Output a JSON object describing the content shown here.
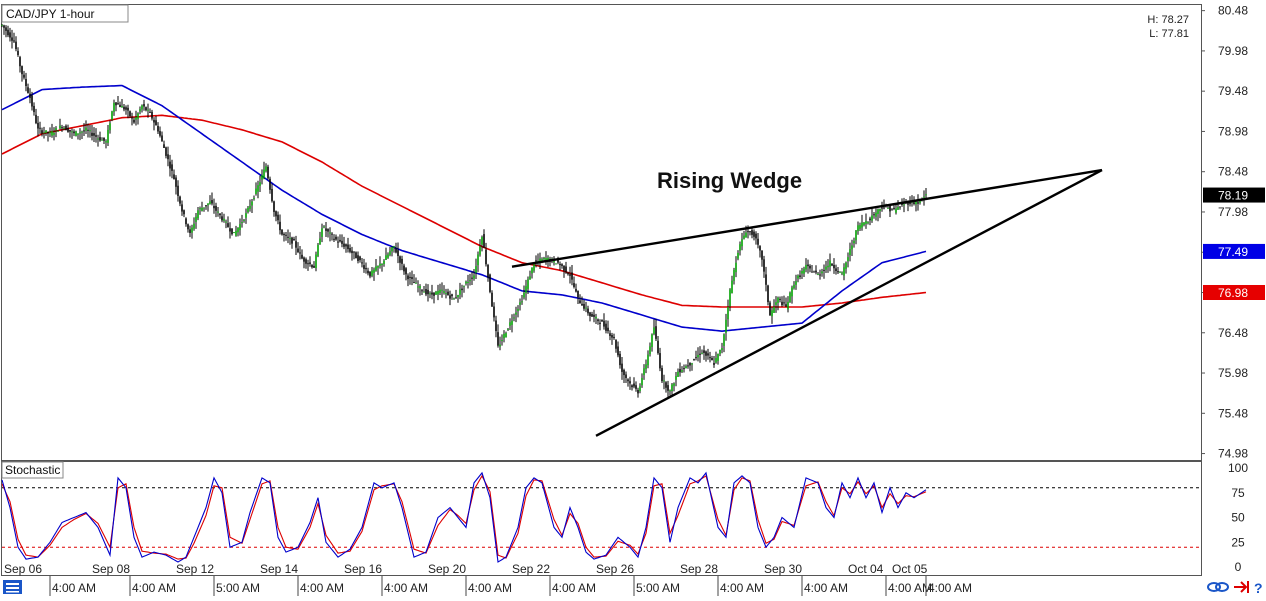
{
  "chart_data": {
    "type": "candlestick",
    "symbol_title": "CAD/JPY 1-hour",
    "hl_high": "H: 78.27",
    "hl_low": "L: 77.81",
    "annotation": "Rising Wedge",
    "price_axis": {
      "ylim": [
        74.9,
        80.55
      ],
      "ticks": [
        "80.48",
        "79.98",
        "79.48",
        "78.98",
        "78.48",
        "77.98",
        "77.48",
        "76.98",
        "76.48",
        "75.98",
        "75.48",
        "74.98"
      ]
    },
    "price_tags": [
      {
        "value": 78.19,
        "label": "78.19",
        "bg": "#000000",
        "fg": "#ffffff"
      },
      {
        "value": 77.49,
        "label": "77.49",
        "bg": "#0000e6",
        "fg": "#ffffff"
      },
      {
        "value": 76.98,
        "label": "76.98",
        "bg": "#e60000",
        "fg": "#ffffff"
      }
    ],
    "x_labels": [
      {
        "t": 0,
        "label": "Sep 06"
      },
      {
        "t": 24,
        "label": "4:00 AM"
      },
      {
        "t": 44,
        "label": "Sep 08"
      },
      {
        "t": 64,
        "label": "4:00 AM"
      },
      {
        "t": 86,
        "label": "Sep 12"
      },
      {
        "t": 106,
        "label": "5:00 AM"
      },
      {
        "t": 128,
        "label": "Sep 14"
      },
      {
        "t": 148,
        "label": "4:00 AM"
      },
      {
        "t": 170,
        "label": "Sep 16"
      },
      {
        "t": 190,
        "label": "4:00 AM"
      },
      {
        "t": 212,
        "label": "Sep 20"
      },
      {
        "t": 232,
        "label": "4:00 AM"
      },
      {
        "t": 254,
        "label": "Sep 22"
      },
      {
        "t": 274,
        "label": "4:00 AM"
      },
      {
        "t": 296,
        "label": "Sep 26"
      },
      {
        "t": 316,
        "label": "5:00 AM"
      },
      {
        "t": 338,
        "label": "Sep 28"
      },
      {
        "t": 358,
        "label": "4:00 AM"
      },
      {
        "t": 380,
        "label": "Sep 30"
      },
      {
        "t": 400,
        "label": "4:00 AM"
      },
      {
        "t": 422,
        "label": "Oct 04"
      },
      {
        "t": 442,
        "label": "4:00 AM"
      },
      {
        "t": 444,
        "label": "Oct 05"
      },
      {
        "t": 462,
        "label": "4:00 AM"
      }
    ],
    "price_path": [
      [
        0,
        80.3
      ],
      [
        6,
        80.1
      ],
      [
        10,
        79.7
      ],
      [
        14,
        79.4
      ],
      [
        18,
        79.0
      ],
      [
        24,
        78.95
      ],
      [
        30,
        79.05
      ],
      [
        36,
        78.95
      ],
      [
        42,
        79.0
      ],
      [
        48,
        78.9
      ],
      [
        52,
        78.85
      ],
      [
        56,
        79.35
      ],
      [
        62,
        79.25
      ],
      [
        66,
        79.1
      ],
      [
        70,
        79.3
      ],
      [
        74,
        79.2
      ],
      [
        78,
        79.0
      ],
      [
        82,
        78.7
      ],
      [
        86,
        78.4
      ],
      [
        90,
        78.0
      ],
      [
        94,
        77.7
      ],
      [
        98,
        78.0
      ],
      [
        104,
        78.1
      ],
      [
        110,
        77.9
      ],
      [
        116,
        77.7
      ],
      [
        122,
        77.95
      ],
      [
        128,
        78.3
      ],
      [
        132,
        78.55
      ],
      [
        136,
        78.0
      ],
      [
        140,
        77.7
      ],
      [
        146,
        77.6
      ],
      [
        150,
        77.4
      ],
      [
        156,
        77.3
      ],
      [
        160,
        77.8
      ],
      [
        166,
        77.65
      ],
      [
        172,
        77.55
      ],
      [
        178,
        77.4
      ],
      [
        184,
        77.2
      ],
      [
        190,
        77.35
      ],
      [
        196,
        77.55
      ],
      [
        202,
        77.2
      ],
      [
        208,
        77.05
      ],
      [
        214,
        76.95
      ],
      [
        220,
        77.0
      ],
      [
        226,
        76.9
      ],
      [
        232,
        77.1
      ],
      [
        236,
        77.2
      ],
      [
        240,
        77.7
      ],
      [
        244,
        77.0
      ],
      [
        248,
        76.3
      ],
      [
        254,
        76.6
      ],
      [
        260,
        76.9
      ],
      [
        266,
        77.35
      ],
      [
        272,
        77.4
      ],
      [
        278,
        77.35
      ],
      [
        284,
        77.2
      ],
      [
        288,
        76.9
      ],
      [
        294,
        76.7
      ],
      [
        300,
        76.6
      ],
      [
        306,
        76.4
      ],
      [
        310,
        76.0
      ],
      [
        314,
        75.85
      ],
      [
        318,
        75.75
      ],
      [
        322,
        76.1
      ],
      [
        326,
        76.55
      ],
      [
        330,
        75.9
      ],
      [
        334,
        75.75
      ],
      [
        338,
        76.0
      ],
      [
        344,
        76.1
      ],
      [
        350,
        76.25
      ],
      [
        356,
        76.1
      ],
      [
        360,
        76.3
      ],
      [
        364,
        77.0
      ],
      [
        368,
        77.5
      ],
      [
        372,
        77.75
      ],
      [
        376,
        77.7
      ],
      [
        380,
        77.4
      ],
      [
        384,
        76.7
      ],
      [
        388,
        76.9
      ],
      [
        392,
        76.8
      ],
      [
        396,
        77.1
      ],
      [
        402,
        77.3
      ],
      [
        408,
        77.2
      ],
      [
        414,
        77.35
      ],
      [
        420,
        77.2
      ],
      [
        424,
        77.5
      ],
      [
        428,
        77.8
      ],
      [
        434,
        77.9
      ],
      [
        440,
        78.05
      ],
      [
        446,
        78.0
      ],
      [
        452,
        78.1
      ],
      [
        458,
        78.1
      ],
      [
        462,
        78.19
      ]
    ],
    "ma_blue": [
      [
        0,
        79.25
      ],
      [
        20,
        79.5
      ],
      [
        40,
        79.53
      ],
      [
        60,
        79.55
      ],
      [
        80,
        79.3
      ],
      [
        100,
        78.95
      ],
      [
        120,
        78.6
      ],
      [
        140,
        78.25
      ],
      [
        160,
        77.95
      ],
      [
        180,
        77.7
      ],
      [
        200,
        77.5
      ],
      [
        220,
        77.35
      ],
      [
        240,
        77.2
      ],
      [
        260,
        77.0
      ],
      [
        280,
        76.95
      ],
      [
        300,
        76.85
      ],
      [
        320,
        76.7
      ],
      [
        340,
        76.55
      ],
      [
        360,
        76.5
      ],
      [
        380,
        76.55
      ],
      [
        400,
        76.6
      ],
      [
        420,
        77.0
      ],
      [
        440,
        77.35
      ],
      [
        462,
        77.49
      ]
    ],
    "ma_red": [
      [
        0,
        78.7
      ],
      [
        20,
        78.95
      ],
      [
        40,
        79.05
      ],
      [
        60,
        79.15
      ],
      [
        80,
        79.18
      ],
      [
        100,
        79.12
      ],
      [
        120,
        79.0
      ],
      [
        140,
        78.85
      ],
      [
        160,
        78.6
      ],
      [
        180,
        78.3
      ],
      [
        200,
        78.05
      ],
      [
        220,
        77.8
      ],
      [
        240,
        77.55
      ],
      [
        260,
        77.35
      ],
      [
        280,
        77.25
      ],
      [
        300,
        77.1
      ],
      [
        320,
        76.95
      ],
      [
        340,
        76.82
      ],
      [
        360,
        76.8
      ],
      [
        380,
        76.8
      ],
      [
        400,
        76.8
      ],
      [
        420,
        76.85
      ],
      [
        440,
        76.92
      ],
      [
        462,
        76.98
      ]
    ],
    "trendlines": [
      {
        "from": [
          255,
          77.3
        ],
        "to": [
          550,
          78.5
        ]
      },
      {
        "from": [
          297,
          75.2
        ],
        "to": [
          550,
          78.5
        ]
      }
    ],
    "stochastic": {
      "label": "Stochastic",
      "ylim": [
        0,
        100
      ],
      "ticks": [
        "100",
        "75",
        "50",
        "25",
        "0"
      ],
      "overbought": 80,
      "oversold": 20,
      "k": [
        [
          0,
          88
        ],
        [
          4,
          60
        ],
        [
          8,
          20
        ],
        [
          12,
          8
        ],
        [
          18,
          10
        ],
        [
          24,
          25
        ],
        [
          30,
          45
        ],
        [
          36,
          50
        ],
        [
          42,
          55
        ],
        [
          48,
          40
        ],
        [
          54,
          12
        ],
        [
          58,
          90
        ],
        [
          62,
          80
        ],
        [
          66,
          30
        ],
        [
          70,
          10
        ],
        [
          76,
          15
        ],
        [
          82,
          12
        ],
        [
          88,
          5
        ],
        [
          92,
          10
        ],
        [
          96,
          30
        ],
        [
          102,
          60
        ],
        [
          106,
          90
        ],
        [
          110,
          75
        ],
        [
          114,
          20
        ],
        [
          120,
          25
        ],
        [
          124,
          55
        ],
        [
          130,
          90
        ],
        [
          134,
          85
        ],
        [
          138,
          30
        ],
        [
          142,
          15
        ],
        [
          148,
          20
        ],
        [
          154,
          45
        ],
        [
          158,
          70
        ],
        [
          162,
          25
        ],
        [
          168,
          10
        ],
        [
          174,
          18
        ],
        [
          180,
          40
        ],
        [
          186,
          85
        ],
        [
          190,
          80
        ],
        [
          196,
          85
        ],
        [
          200,
          60
        ],
        [
          206,
          10
        ],
        [
          212,
          15
        ],
        [
          218,
          50
        ],
        [
          224,
          60
        ],
        [
          228,
          50
        ],
        [
          232,
          40
        ],
        [
          236,
          85
        ],
        [
          240,
          95
        ],
        [
          244,
          70
        ],
        [
          248,
          5
        ],
        [
          252,
          10
        ],
        [
          258,
          40
        ],
        [
          262,
          80
        ],
        [
          266,
          90
        ],
        [
          270,
          85
        ],
        [
          276,
          40
        ],
        [
          280,
          30
        ],
        [
          284,
          60
        ],
        [
          288,
          40
        ],
        [
          292,
          15
        ],
        [
          296,
          8
        ],
        [
          302,
          12
        ],
        [
          308,
          30
        ],
        [
          314,
          20
        ],
        [
          318,
          10
        ],
        [
          322,
          40
        ],
        [
          326,
          90
        ],
        [
          330,
          80
        ],
        [
          334,
          25
        ],
        [
          338,
          60
        ],
        [
          344,
          90
        ],
        [
          348,
          85
        ],
        [
          352,
          95
        ],
        [
          358,
          40
        ],
        [
          362,
          30
        ],
        [
          366,
          85
        ],
        [
          370,
          92
        ],
        [
          374,
          85
        ],
        [
          378,
          40
        ],
        [
          382,
          20
        ],
        [
          386,
          30
        ],
        [
          390,
          50
        ],
        [
          396,
          40
        ],
        [
          402,
          90
        ],
        [
          408,
          85
        ],
        [
          412,
          60
        ],
        [
          416,
          50
        ],
        [
          420,
          85
        ],
        [
          424,
          70
        ],
        [
          428,
          90
        ],
        [
          432,
          70
        ],
        [
          436,
          85
        ],
        [
          440,
          55
        ],
        [
          444,
          80
        ],
        [
          448,
          60
        ],
        [
          452,
          75
        ],
        [
          456,
          70
        ],
        [
          462,
          78
        ]
      ],
      "d": [
        [
          0,
          84
        ],
        [
          4,
          66
        ],
        [
          8,
          28
        ],
        [
          12,
          12
        ],
        [
          18,
          10
        ],
        [
          24,
          22
        ],
        [
          30,
          40
        ],
        [
          36,
          48
        ],
        [
          42,
          54
        ],
        [
          48,
          44
        ],
        [
          54,
          20
        ],
        [
          58,
          80
        ],
        [
          62,
          84
        ],
        [
          66,
          40
        ],
        [
          70,
          16
        ],
        [
          76,
          14
        ],
        [
          82,
          13
        ],
        [
          88,
          8
        ],
        [
          92,
          9
        ],
        [
          96,
          24
        ],
        [
          102,
          52
        ],
        [
          106,
          82
        ],
        [
          110,
          80
        ],
        [
          114,
          30
        ],
        [
          120,
          24
        ],
        [
          124,
          48
        ],
        [
          130,
          84
        ],
        [
          134,
          87
        ],
        [
          138,
          40
        ],
        [
          142,
          20
        ],
        [
          148,
          18
        ],
        [
          154,
          40
        ],
        [
          158,
          64
        ],
        [
          162,
          32
        ],
        [
          168,
          14
        ],
        [
          174,
          16
        ],
        [
          180,
          36
        ],
        [
          186,
          78
        ],
        [
          190,
          82
        ],
        [
          196,
          84
        ],
        [
          200,
          66
        ],
        [
          206,
          18
        ],
        [
          212,
          14
        ],
        [
          218,
          42
        ],
        [
          224,
          58
        ],
        [
          228,
          52
        ],
        [
          232,
          44
        ],
        [
          236,
          78
        ],
        [
          240,
          92
        ],
        [
          244,
          76
        ],
        [
          248,
          12
        ],
        [
          252,
          9
        ],
        [
          258,
          34
        ],
        [
          262,
          72
        ],
        [
          266,
          88
        ],
        [
          270,
          87
        ],
        [
          276,
          48
        ],
        [
          280,
          32
        ],
        [
          284,
          54
        ],
        [
          288,
          44
        ],
        [
          292,
          20
        ],
        [
          296,
          10
        ],
        [
          302,
          11
        ],
        [
          308,
          26
        ],
        [
          314,
          22
        ],
        [
          318,
          13
        ],
        [
          322,
          34
        ],
        [
          326,
          82
        ],
        [
          330,
          84
        ],
        [
          334,
          34
        ],
        [
          338,
          52
        ],
        [
          344,
          84
        ],
        [
          348,
          87
        ],
        [
          352,
          92
        ],
        [
          358,
          48
        ],
        [
          362,
          32
        ],
        [
          366,
          78
        ],
        [
          370,
          90
        ],
        [
          374,
          87
        ],
        [
          378,
          48
        ],
        [
          382,
          24
        ],
        [
          386,
          28
        ],
        [
          390,
          46
        ],
        [
          396,
          42
        ],
        [
          402,
          82
        ],
        [
          408,
          86
        ],
        [
          412,
          66
        ],
        [
          416,
          52
        ],
        [
          420,
          80
        ],
        [
          424,
          74
        ],
        [
          428,
          86
        ],
        [
          432,
          74
        ],
        [
          436,
          82
        ],
        [
          440,
          60
        ],
        [
          444,
          74
        ],
        [
          448,
          64
        ],
        [
          452,
          72
        ],
        [
          456,
          71
        ],
        [
          462,
          76
        ]
      ]
    },
    "colors": {
      "bull": "#00a000",
      "bear": "#000000",
      "ma_blue": "#0000cc",
      "ma_red": "#dd0000",
      "stoch_k": "#0000cc",
      "stoch_d": "#dd0000",
      "trendline": "#000000",
      "overbought_line": "#000000",
      "oversold_line": "#dd0000"
    },
    "grid": false,
    "legend": "none"
  }
}
